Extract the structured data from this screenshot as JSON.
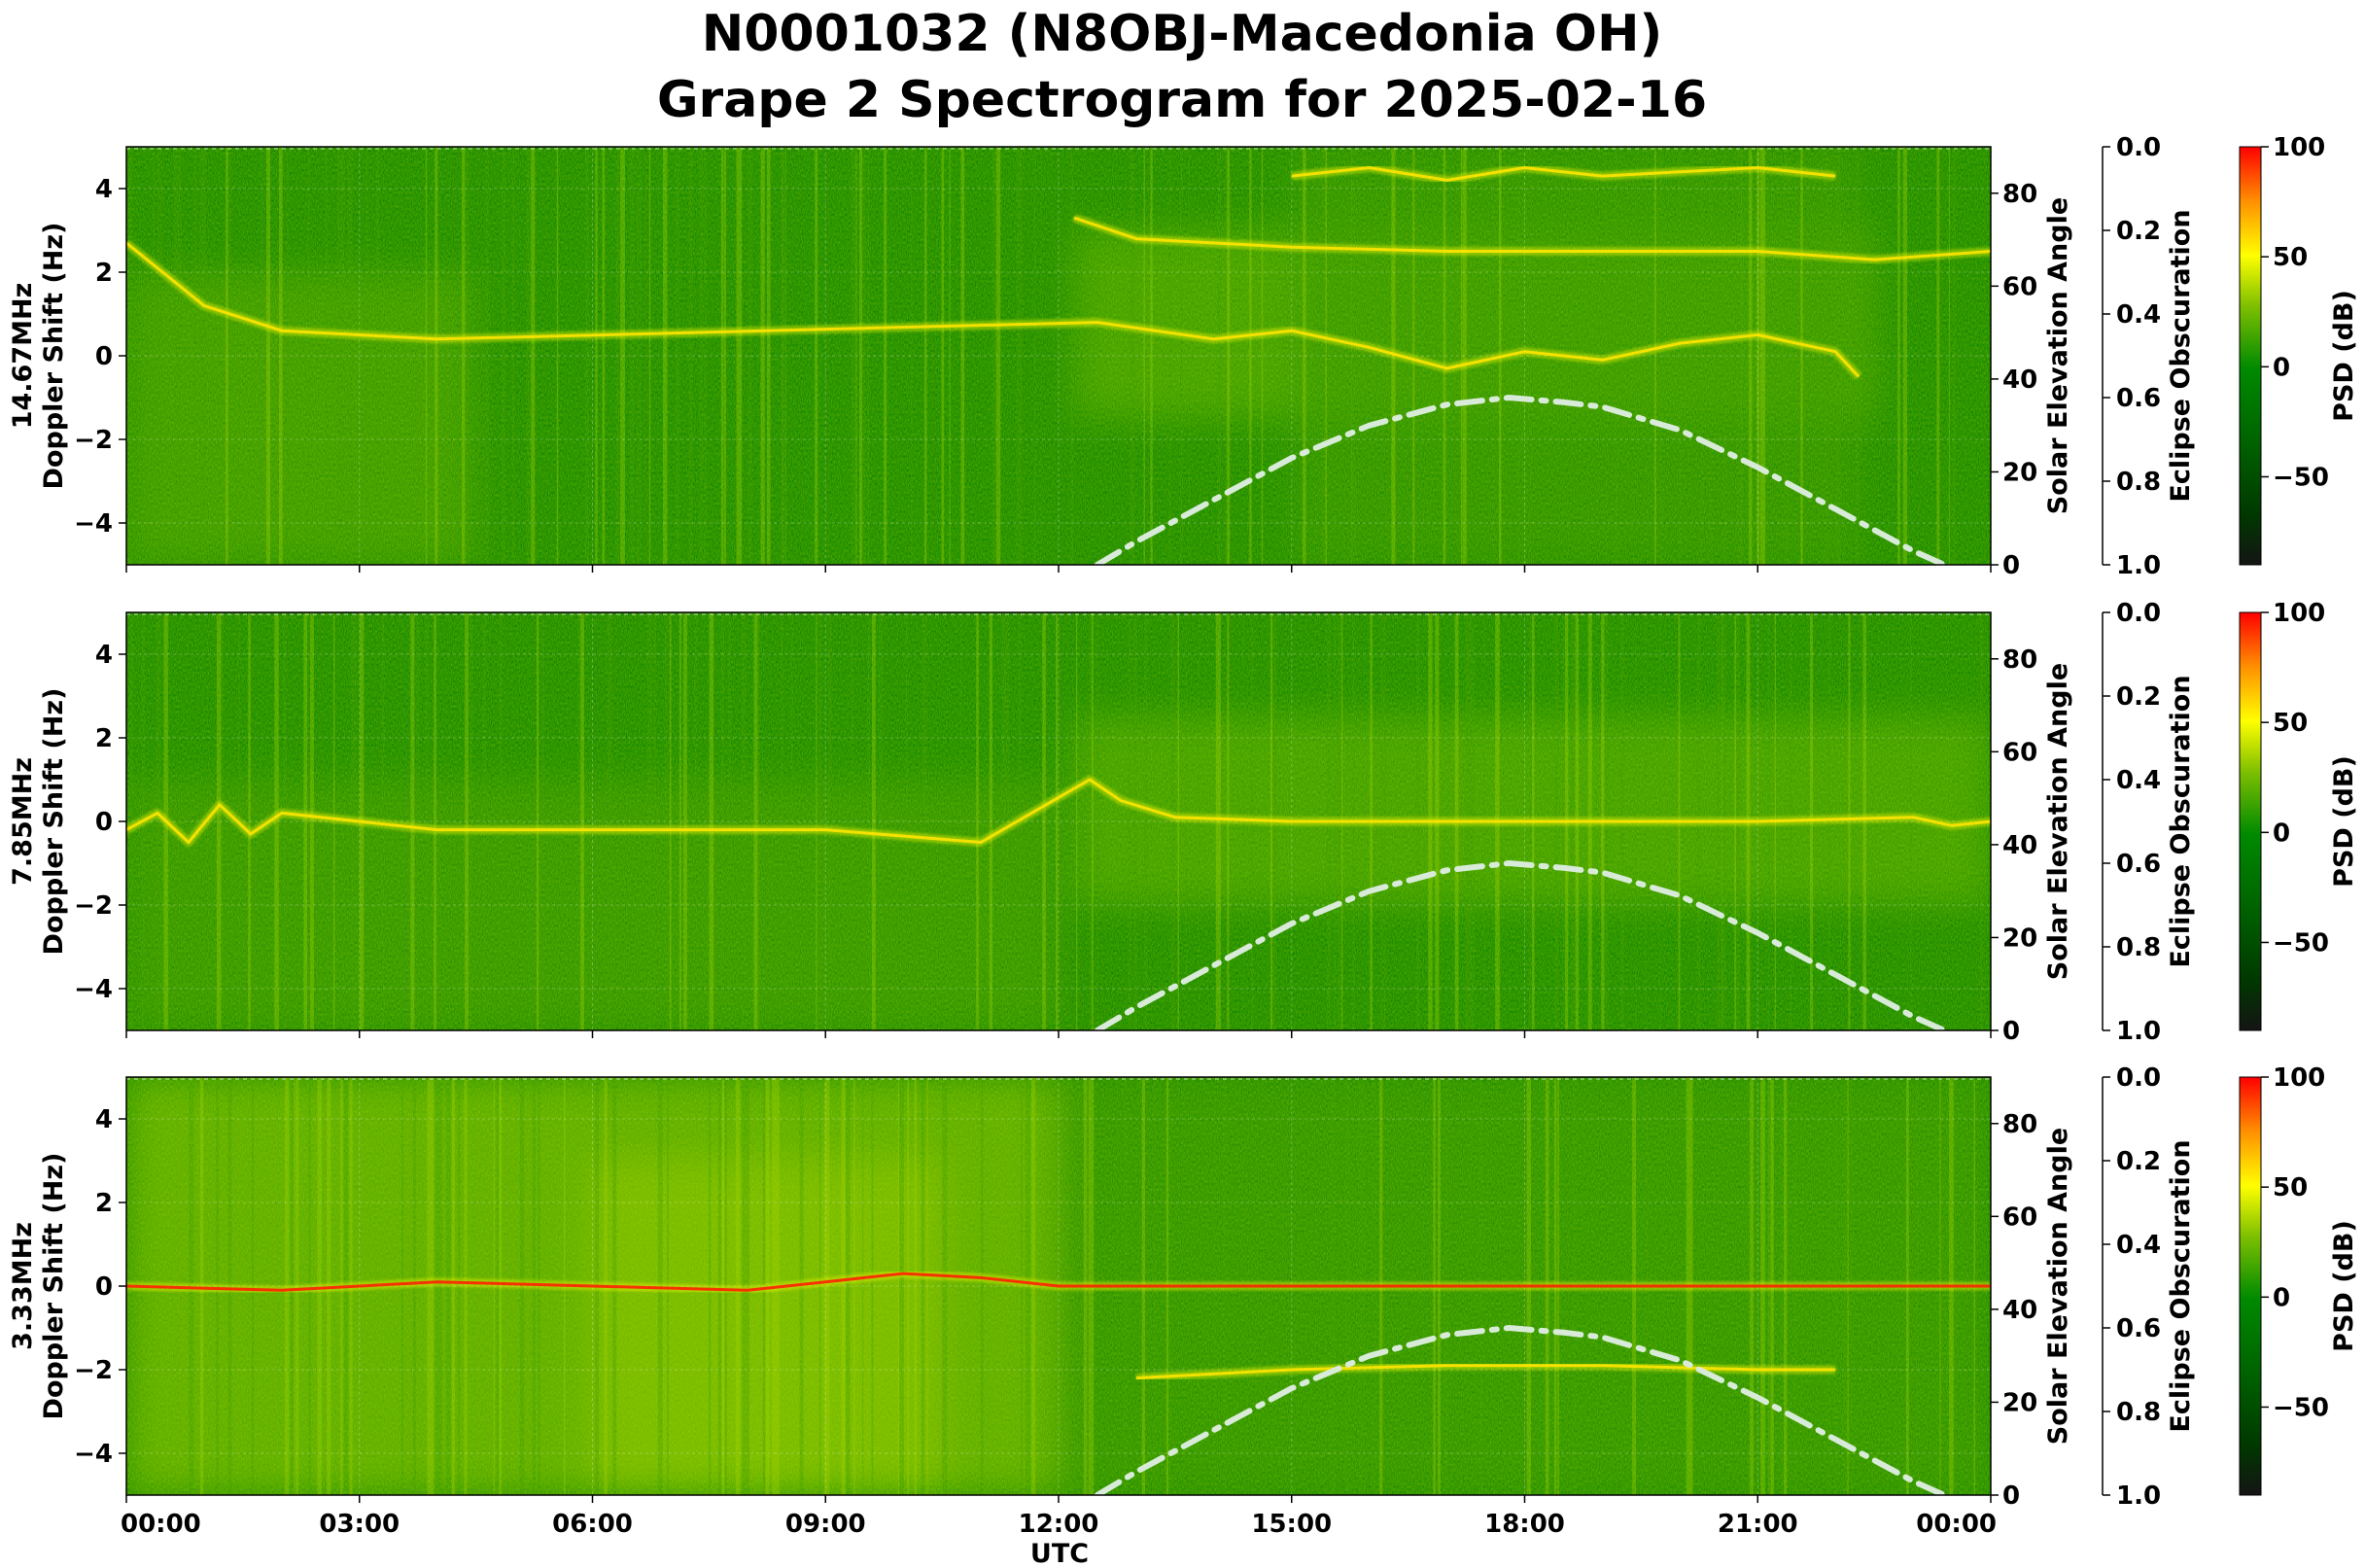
{
  "figure": {
    "title_line1": "N0001032 (N8OBJ-Macedonia OH)",
    "title_line2": "Grape 2 Spectrogram for 2025-02-16",
    "xlabel": "UTC"
  },
  "colors": {
    "background_green": "#007a00",
    "signal_yellow": "#e6f000",
    "peak_red": "#ff2000",
    "solar_curve": "#d8ead8",
    "colormap": [
      "#1a1a1a",
      "#004d00",
      "#008000",
      "#7fbf00",
      "#ffff00",
      "#ff8c00",
      "#ff0000"
    ]
  },
  "chart_data": [
    {
      "type": "heatmap",
      "panel_label": "14.67MHz",
      "ylabel": "Doppler Shift (Hz)",
      "ylim": [
        -5,
        5
      ],
      "yticks": [
        "−4",
        "−2",
        "0",
        "2",
        "4"
      ],
      "xlim": [
        "00:00",
        "24:00"
      ],
      "xticks": [
        "00:00",
        "03:00",
        "06:00",
        "09:00",
        "12:00",
        "15:00",
        "18:00",
        "21:00",
        "00:00"
      ],
      "grid": true,
      "right_axis_1": {
        "label": "Solar Elevation Angle",
        "ylim": [
          0,
          90
        ],
        "ticks": [
          "0",
          "20",
          "40",
          "60",
          "80"
        ]
      },
      "right_axis_2": {
        "label": "Eclipse Obscuration",
        "ylim": [
          1.0,
          0.0
        ],
        "ticks": [
          "0.0",
          "0.2",
          "0.4",
          "0.6",
          "0.8",
          "1.0"
        ]
      },
      "colorbar": {
        "label": "PSD (dB)",
        "range": [
          -90,
          100
        ],
        "ticks": [
          "100",
          "50",
          "0",
          "−50"
        ]
      },
      "traces": [
        {
          "name": "primary",
          "points": [
            [
              0,
              2.7
            ],
            [
              1,
              1.2
            ],
            [
              2,
              0.6
            ],
            [
              4,
              0.4
            ],
            [
              12.5,
              0.8
            ],
            [
              14,
              0.4
            ],
            [
              15,
              0.6
            ],
            [
              16,
              0.2
            ],
            [
              17,
              -0.3
            ],
            [
              18,
              0.1
            ],
            [
              19,
              -0.1
            ],
            [
              20,
              0.3
            ],
            [
              21,
              0.5
            ],
            [
              22,
              0.1
            ],
            [
              22.3,
              -0.5
            ]
          ]
        },
        {
          "name": "upper",
          "points": [
            [
              12.2,
              3.3
            ],
            [
              13,
              2.8
            ],
            [
              15,
              2.6
            ],
            [
              17,
              2.5
            ],
            [
              19,
              2.5
            ],
            [
              21,
              2.5
            ],
            [
              22.5,
              2.3
            ],
            [
              24,
              2.5
            ]
          ]
        },
        {
          "name": "high",
          "points": [
            [
              15,
              4.3
            ],
            [
              16,
              4.5
            ],
            [
              17,
              4.2
            ],
            [
              18,
              4.5
            ],
            [
              19,
              4.3
            ],
            [
              20,
              4.4
            ],
            [
              21,
              4.5
            ],
            [
              22,
              4.3
            ]
          ]
        }
      ],
      "solar_elevation_curve": [
        [
          12.5,
          0
        ],
        [
          13,
          5
        ],
        [
          14,
          14
        ],
        [
          15,
          23
        ],
        [
          16,
          30
        ],
        [
          17,
          34.5
        ],
        [
          17.8,
          36
        ],
        [
          18.5,
          35
        ],
        [
          19,
          34
        ],
        [
          20,
          29
        ],
        [
          21,
          21
        ],
        [
          22,
          12
        ],
        [
          23,
          3
        ],
        [
          23.4,
          0
        ]
      ]
    },
    {
      "type": "heatmap",
      "panel_label": "7.85MHz",
      "ylabel": "Doppler Shift (Hz)",
      "ylim": [
        -5,
        5
      ],
      "yticks": [
        "−4",
        "−2",
        "0",
        "2",
        "4"
      ],
      "xlim": [
        "00:00",
        "24:00"
      ],
      "xticks": [
        "00:00",
        "03:00",
        "06:00",
        "09:00",
        "12:00",
        "15:00",
        "18:00",
        "21:00",
        "00:00"
      ],
      "grid": true,
      "right_axis_1": {
        "label": "Solar Elevation Angle",
        "ylim": [
          0,
          90
        ],
        "ticks": [
          "0",
          "20",
          "40",
          "60",
          "80"
        ]
      },
      "right_axis_2": {
        "label": "Eclipse Obscuration",
        "ylim": [
          1.0,
          0.0
        ],
        "ticks": [
          "0.0",
          "0.2",
          "0.4",
          "0.6",
          "0.8",
          "1.0"
        ]
      },
      "colorbar": {
        "label": "PSD (dB)",
        "range": [
          -90,
          100
        ],
        "ticks": [
          "100",
          "50",
          "0",
          "−50"
        ]
      },
      "traces": [
        {
          "name": "primary",
          "points": [
            [
              0,
              -0.2
            ],
            [
              0.4,
              0.2
            ],
            [
              0.8,
              -0.5
            ],
            [
              1.2,
              0.4
            ],
            [
              1.6,
              -0.3
            ],
            [
              2,
              0.2
            ],
            [
              4,
              -0.2
            ],
            [
              6,
              -0.2
            ],
            [
              9,
              -0.2
            ],
            [
              11,
              -0.5
            ],
            [
              12.4,
              1.0
            ],
            [
              12.8,
              0.5
            ],
            [
              13.5,
              0.1
            ],
            [
              15,
              0.0
            ],
            [
              18,
              0.0
            ],
            [
              21,
              0.0
            ],
            [
              23,
              0.1
            ],
            [
              23.5,
              -0.1
            ],
            [
              24,
              0.0
            ]
          ]
        }
      ],
      "solar_elevation_curve": [
        [
          12.5,
          0
        ],
        [
          13,
          5
        ],
        [
          14,
          14
        ],
        [
          15,
          23
        ],
        [
          16,
          30
        ],
        [
          17,
          34.5
        ],
        [
          17.8,
          36
        ],
        [
          18.5,
          35
        ],
        [
          19,
          34
        ],
        [
          20,
          29
        ],
        [
          21,
          21
        ],
        [
          22,
          12
        ],
        [
          23,
          3
        ],
        [
          23.4,
          0
        ]
      ]
    },
    {
      "type": "heatmap",
      "panel_label": "3.33MHz",
      "ylabel": "Doppler Shift (Hz)",
      "ylim": [
        -5,
        5
      ],
      "yticks": [
        "−4",
        "−2",
        "0",
        "2",
        "4"
      ],
      "xlim": [
        "00:00",
        "24:00"
      ],
      "xticks": [
        "00:00",
        "03:00",
        "06:00",
        "09:00",
        "12:00",
        "15:00",
        "18:00",
        "21:00",
        "00:00"
      ],
      "grid": true,
      "right_axis_1": {
        "label": "Solar Elevation Angle",
        "ylim": [
          0,
          90
        ],
        "ticks": [
          "0",
          "20",
          "40",
          "60",
          "80"
        ]
      },
      "right_axis_2": {
        "label": "Eclipse Obscuration",
        "ylim": [
          1.0,
          0.0
        ],
        "ticks": [
          "0.0",
          "0.2",
          "0.4",
          "0.6",
          "0.8",
          "1.0"
        ]
      },
      "colorbar": {
        "label": "PSD (dB)",
        "range": [
          -90,
          100
        ],
        "ticks": [
          "100",
          "50",
          "0",
          "−50"
        ]
      },
      "traces": [
        {
          "name": "primary",
          "points": [
            [
              0,
              0.0
            ],
            [
              2,
              -0.1
            ],
            [
              4,
              0.1
            ],
            [
              6,
              0.0
            ],
            [
              8,
              -0.1
            ],
            [
              9,
              0.1
            ],
            [
              10,
              0.3
            ],
            [
              11,
              0.2
            ],
            [
              12,
              0.0
            ],
            [
              15,
              0.0
            ],
            [
              18,
              0.0
            ],
            [
              21,
              0.0
            ],
            [
              24,
              0.0
            ]
          ]
        },
        {
          "name": "lower",
          "points": [
            [
              13,
              -2.2
            ],
            [
              15,
              -2.0
            ],
            [
              17,
              -1.9
            ],
            [
              19,
              -1.9
            ],
            [
              21,
              -2.0
            ],
            [
              22,
              -2.0
            ]
          ]
        }
      ],
      "solar_elevation_curve": [
        [
          12.5,
          0
        ],
        [
          13,
          5
        ],
        [
          14,
          14
        ],
        [
          15,
          23
        ],
        [
          16,
          30
        ],
        [
          17,
          34.5
        ],
        [
          17.8,
          36
        ],
        [
          18.5,
          35
        ],
        [
          19,
          34
        ],
        [
          20,
          29
        ],
        [
          21,
          21
        ],
        [
          22,
          12
        ],
        [
          23,
          3
        ],
        [
          23.4,
          0
        ]
      ]
    }
  ]
}
